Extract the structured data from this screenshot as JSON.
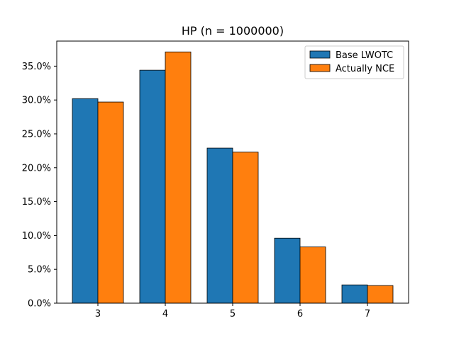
{
  "chart_data": {
    "type": "bar",
    "title": "HP (n = 1000000)",
    "xlabel": "",
    "ylabel": "",
    "categories": [
      "3",
      "4",
      "5",
      "6",
      "7"
    ],
    "series": [
      {
        "name": "Base LWOTC",
        "color": "#1f77b4",
        "values": [
          30.2,
          34.4,
          22.9,
          9.6,
          2.7
        ]
      },
      {
        "name": "Actually NCE",
        "color": "#ff7f0e",
        "values": [
          29.7,
          37.1,
          22.3,
          8.3,
          2.6
        ]
      }
    ],
    "ylim": [
      0,
      38.7
    ],
    "yticks": [
      0,
      5,
      10,
      15,
      20,
      25,
      30,
      35
    ],
    "ytick_labels": [
      "0.0%",
      "5.0%",
      "10.0%",
      "15.0%",
      "20.0%",
      "25.0%",
      "30.0%",
      "35.0%"
    ],
    "grid": false,
    "legend_position": "top-right"
  }
}
